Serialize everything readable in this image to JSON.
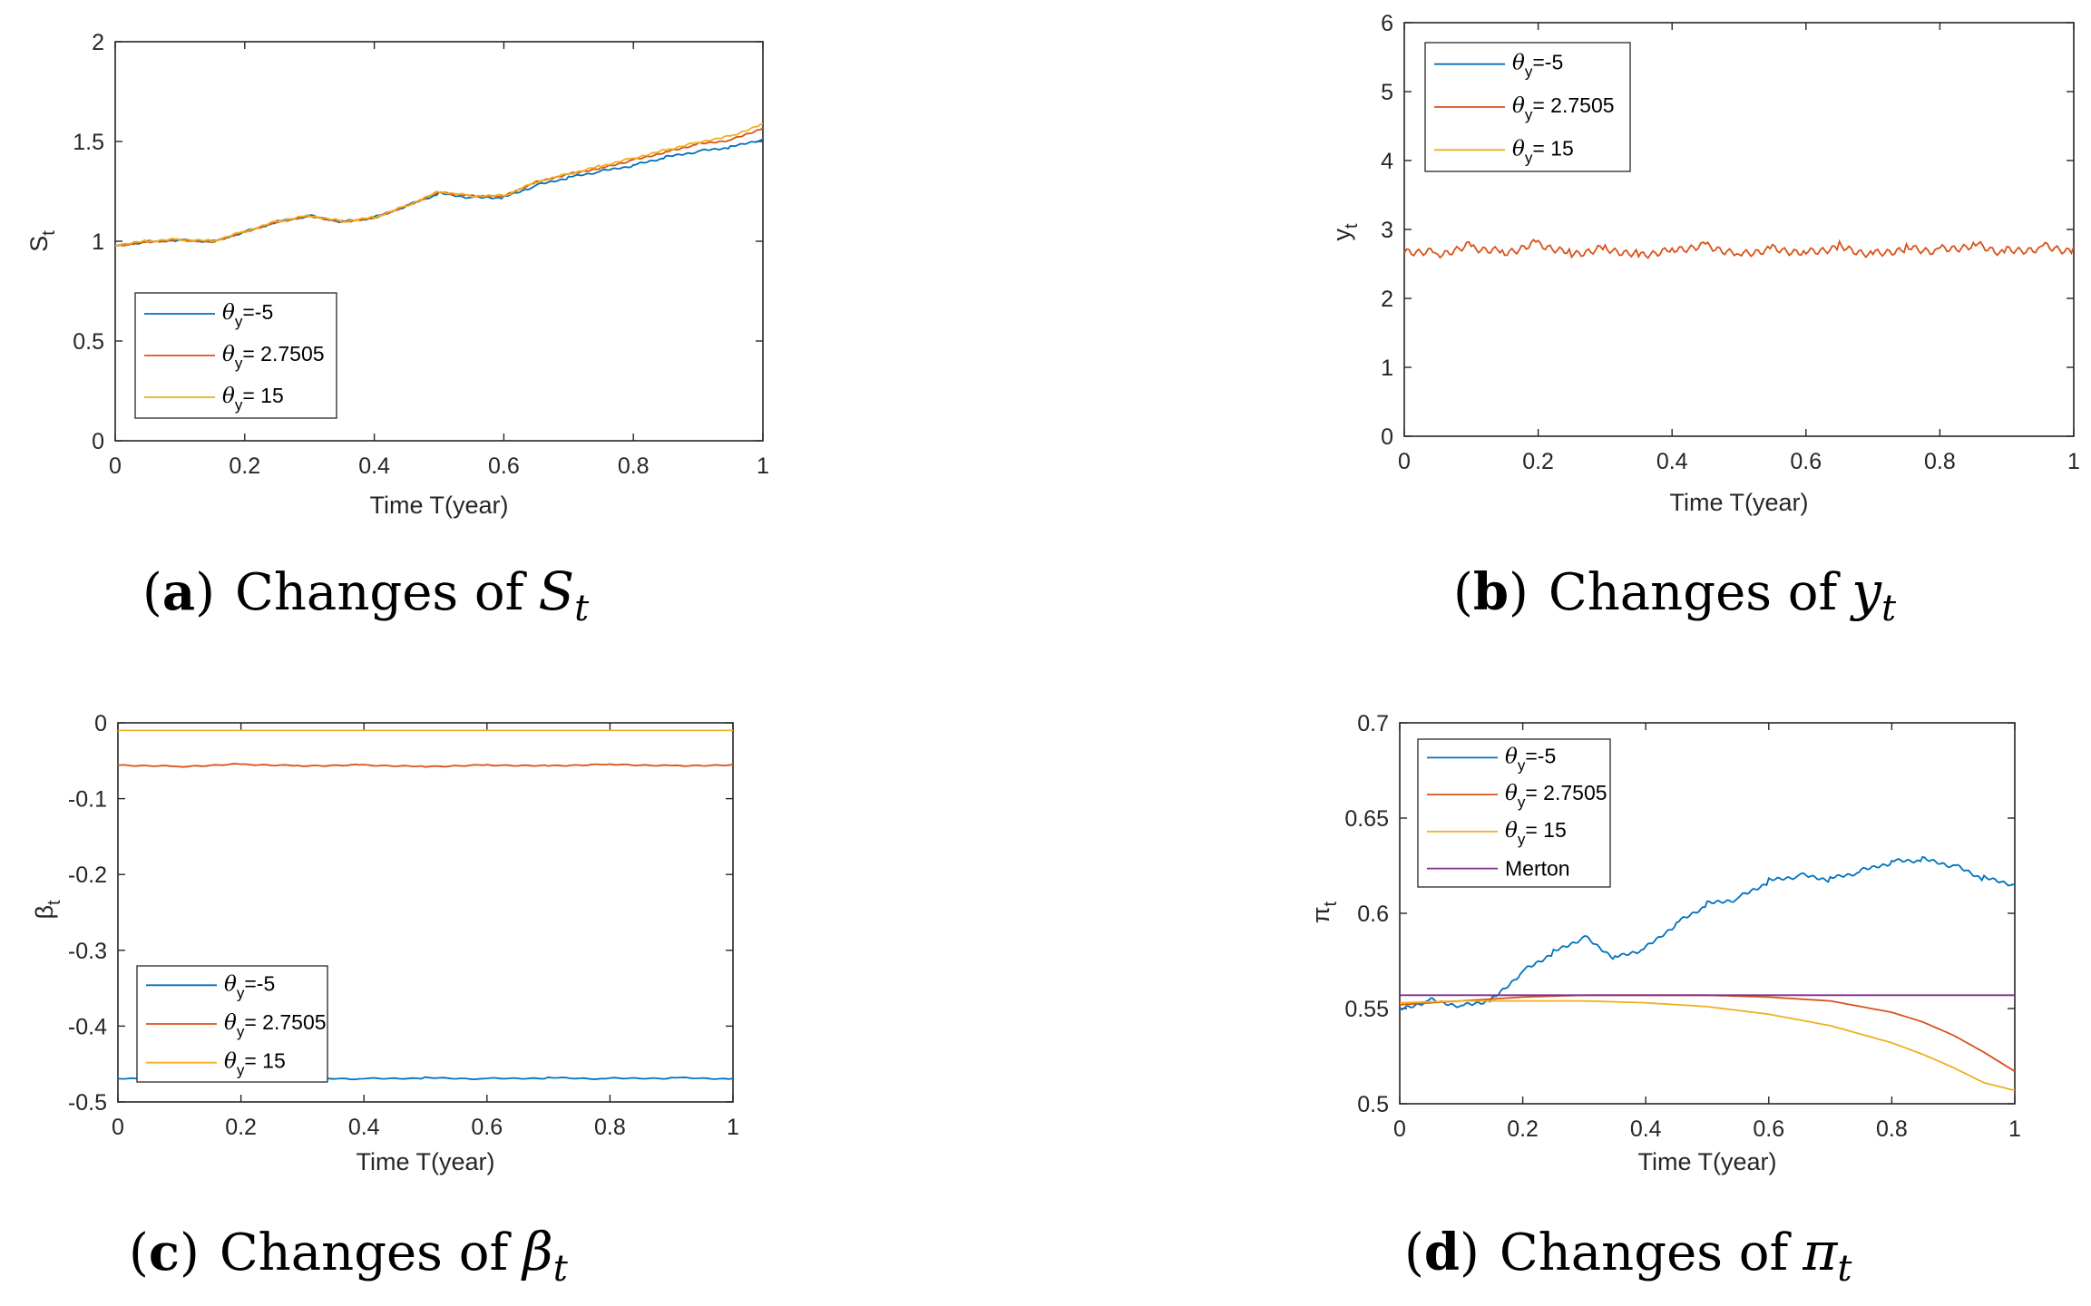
{
  "figure": {
    "panels": [
      {
        "id": "a",
        "caption": {
          "letter": "a",
          "text": "Changes of",
          "sym": "S",
          "sub": "t"
        },
        "ylabel": {
          "sym": "S",
          "sub": "t"
        }
      },
      {
        "id": "b",
        "caption": {
          "letter": "b",
          "text": "Changes of",
          "sym": "y",
          "sub": "t"
        },
        "ylabel": {
          "sym": "y",
          "sub": "t"
        }
      },
      {
        "id": "c",
        "caption": {
          "letter": "c",
          "text": "Changes of",
          "sym": "β",
          "sub": "t"
        },
        "ylabel": {
          "sym": "β",
          "sub": "t"
        }
      },
      {
        "id": "d",
        "caption": {
          "letter": "d",
          "text": "Changes of",
          "sym": "π",
          "sub": "t"
        },
        "ylabel": {
          "sym": "π",
          "sub": "t"
        }
      }
    ]
  },
  "chart_data": [
    {
      "type": "line",
      "panel": "a",
      "xlabel": "Time T(year)",
      "ylabel": "S_t",
      "xlim": [
        0,
        1
      ],
      "ylim": [
        0,
        2
      ],
      "xticks": [
        "0",
        "0.2",
        "0.4",
        "0.6",
        "0.8",
        "1"
      ],
      "yticks": [
        "0",
        "0.5",
        "1",
        "1.5",
        "2"
      ],
      "legend_position": "bottom-left",
      "series": [
        {
          "name": "θy=-5",
          "legend": {
            "sub": "y",
            "val": "=-5"
          },
          "color": "#0072BD",
          "x": [
            0,
            0.05,
            0.1,
            0.15,
            0.2,
            0.25,
            0.3,
            0.35,
            0.4,
            0.45,
            0.5,
            0.55,
            0.6,
            0.65,
            0.7,
            0.75,
            0.8,
            0.85,
            0.9,
            0.95,
            1.0
          ],
          "y": [
            0.98,
            1.0,
            1.01,
            1.0,
            1.05,
            1.1,
            1.13,
            1.1,
            1.12,
            1.18,
            1.24,
            1.22,
            1.22,
            1.28,
            1.32,
            1.35,
            1.38,
            1.42,
            1.45,
            1.47,
            1.51
          ]
        },
        {
          "name": "θy=2.7505",
          "legend": {
            "sub": "y",
            "val": "= 2.7505"
          },
          "color": "#D95319",
          "x": [
            0,
            0.05,
            0.1,
            0.15,
            0.2,
            0.25,
            0.3,
            0.35,
            0.4,
            0.45,
            0.5,
            0.55,
            0.6,
            0.65,
            0.7,
            0.75,
            0.8,
            0.85,
            0.9,
            0.95,
            1.0
          ],
          "y": [
            0.98,
            1.0,
            1.01,
            1.0,
            1.05,
            1.1,
            1.13,
            1.1,
            1.12,
            1.18,
            1.25,
            1.23,
            1.23,
            1.3,
            1.34,
            1.37,
            1.41,
            1.45,
            1.49,
            1.51,
            1.57
          ]
        },
        {
          "name": "θy=15",
          "legend": {
            "sub": "y",
            "val": "= 15"
          },
          "color": "#EDB120",
          "x": [
            0,
            0.05,
            0.1,
            0.15,
            0.2,
            0.25,
            0.3,
            0.35,
            0.4,
            0.45,
            0.5,
            0.55,
            0.6,
            0.65,
            0.7,
            0.75,
            0.8,
            0.85,
            0.9,
            0.95,
            1.0
          ],
          "y": [
            0.98,
            1.0,
            1.01,
            1.0,
            1.05,
            1.1,
            1.13,
            1.1,
            1.12,
            1.18,
            1.25,
            1.23,
            1.23,
            1.3,
            1.34,
            1.38,
            1.42,
            1.46,
            1.5,
            1.53,
            1.59
          ]
        }
      ]
    },
    {
      "type": "line",
      "panel": "b",
      "xlabel": "Time T(year)",
      "ylabel": "y_t",
      "xlim": [
        0,
        1
      ],
      "ylim": [
        0,
        6
      ],
      "xticks": [
        "0",
        "0.2",
        "0.4",
        "0.6",
        "0.8",
        "1"
      ],
      "yticks": [
        "0",
        "1",
        "2",
        "3",
        "4",
        "5",
        "6"
      ],
      "legend_position": "top-left",
      "series": [
        {
          "name": "θy=-5",
          "legend": {
            "sub": "y",
            "val": "=-5"
          },
          "color": "#0072BD",
          "x": [],
          "y": []
        },
        {
          "name": "θy=2.7505",
          "legend": {
            "sub": "y",
            "val": "= 2.7505"
          },
          "color": "#D95319",
          "x": [
            0,
            0.05,
            0.1,
            0.15,
            0.2,
            0.25,
            0.3,
            0.35,
            0.4,
            0.45,
            0.5,
            0.55,
            0.6,
            0.65,
            0.7,
            0.75,
            0.8,
            0.85,
            0.9,
            0.95,
            1.0
          ],
          "y": [
            2.75,
            2.7,
            2.8,
            2.72,
            2.85,
            2.7,
            2.78,
            2.68,
            2.76,
            2.82,
            2.7,
            2.77,
            2.72,
            2.8,
            2.69,
            2.78,
            2.74,
            2.83,
            2.71,
            2.79,
            2.75
          ]
        },
        {
          "name": "θy=15",
          "legend": {
            "sub": "y",
            "val": "= 15"
          },
          "color": "#EDB120",
          "x": [],
          "y": []
        }
      ]
    },
    {
      "type": "line",
      "panel": "c",
      "xlabel": "Time T(year)",
      "ylabel": "β_t",
      "xlim": [
        0,
        1
      ],
      "ylim": [
        -0.5,
        0
      ],
      "xticks": [
        "0",
        "0.2",
        "0.4",
        "0.6",
        "0.8",
        "1"
      ],
      "yticks": [
        "-0.5",
        "-0.4",
        "-0.3",
        "-0.2",
        "-0.1",
        "0"
      ],
      "legend_position": "bottom-left",
      "series": [
        {
          "name": "θy=-5",
          "legend": {
            "sub": "y",
            "val": "=-5"
          },
          "color": "#0072BD",
          "x": [
            0,
            0.1,
            0.2,
            0.3,
            0.4,
            0.5,
            0.6,
            0.7,
            0.8,
            0.9,
            1.0
          ],
          "y": [
            -0.469,
            -0.468,
            -0.469,
            -0.468,
            -0.469,
            -0.468,
            -0.469,
            -0.468,
            -0.469,
            -0.468,
            -0.469
          ]
        },
        {
          "name": "θy=2.7505",
          "legend": {
            "sub": "y",
            "val": "= 2.7505"
          },
          "color": "#D95319",
          "x": [
            0,
            0.1,
            0.2,
            0.3,
            0.4,
            0.5,
            0.6,
            0.7,
            0.8,
            0.9,
            1.0
          ],
          "y": [
            -0.055,
            -0.057,
            -0.054,
            -0.056,
            -0.055,
            -0.057,
            -0.055,
            -0.056,
            -0.054,
            -0.056,
            -0.055
          ]
        },
        {
          "name": "θy=15",
          "legend": {
            "sub": "y",
            "val": "= 15"
          },
          "color": "#EDB120",
          "x": [
            0,
            1
          ],
          "y": [
            -0.01,
            -0.01
          ]
        }
      ]
    },
    {
      "type": "line",
      "panel": "d",
      "xlabel": "Time T(year)",
      "ylabel": "π_t",
      "xlim": [
        0,
        1
      ],
      "ylim": [
        0.5,
        0.7
      ],
      "xticks": [
        "0",
        "0.2",
        "0.4",
        "0.6",
        "0.8",
        "1"
      ],
      "yticks": [
        "0.5",
        "0.55",
        "0.6",
        "0.65",
        "0.7"
      ],
      "legend_position": "top-left",
      "series": [
        {
          "name": "θy=-5",
          "legend": {
            "sub": "y",
            "val": "=-5"
          },
          "color": "#0072BD",
          "x": [
            0,
            0.05,
            0.1,
            0.15,
            0.2,
            0.25,
            0.3,
            0.35,
            0.4,
            0.45,
            0.5,
            0.55,
            0.6,
            0.65,
            0.7,
            0.75,
            0.8,
            0.85,
            0.9,
            0.95,
            1.0
          ],
          "y": [
            0.55,
            0.555,
            0.552,
            0.555,
            0.57,
            0.58,
            0.588,
            0.577,
            0.582,
            0.595,
            0.605,
            0.608,
            0.617,
            0.62,
            0.618,
            0.622,
            0.627,
            0.628,
            0.625,
            0.618,
            0.615
          ]
        },
        {
          "name": "θy=2.7505",
          "legend": {
            "sub": "y",
            "val": "= 2.7505"
          },
          "color": "#D95319",
          "x": [
            0,
            0.1,
            0.2,
            0.3,
            0.4,
            0.5,
            0.6,
            0.7,
            0.8,
            0.85,
            0.9,
            0.95,
            1.0
          ],
          "y": [
            0.552,
            0.554,
            0.556,
            0.557,
            0.557,
            0.557,
            0.556,
            0.554,
            0.548,
            0.543,
            0.536,
            0.527,
            0.517
          ]
        },
        {
          "name": "θy=15",
          "legend": {
            "sub": "y",
            "val": "= 15"
          },
          "color": "#EDB120",
          "x": [
            0,
            0.1,
            0.2,
            0.3,
            0.4,
            0.5,
            0.6,
            0.7,
            0.8,
            0.85,
            0.9,
            0.95,
            1.0
          ],
          "y": [
            0.553,
            0.554,
            0.554,
            0.554,
            0.553,
            0.551,
            0.547,
            0.541,
            0.532,
            0.526,
            0.519,
            0.511,
            0.507
          ]
        },
        {
          "name": "Merton",
          "legend": {
            "sub": "",
            "val": "Merton"
          },
          "color": "#7E2F8E",
          "x": [
            0,
            1
          ],
          "y": [
            0.557,
            0.557
          ]
        }
      ]
    }
  ]
}
